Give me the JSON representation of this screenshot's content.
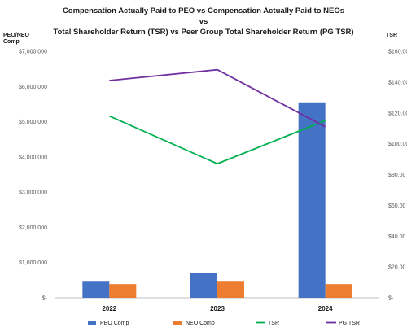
{
  "chart_data": {
    "type": "bar",
    "title_lines": [
      "Compensation Actually Paid to PEO vs Compensation Actually Paid to NEOs",
      "vs",
      "Total Shareholder Return (TSR) vs Peer Group Total Shareholder Return (PG TSR)"
    ],
    "y_left_label": "PEO/NEO Comp",
    "y_right_label": "TSR",
    "categories": [
      "2022",
      "2023",
      "2024"
    ],
    "y_left": {
      "min": 0,
      "max": 7000000,
      "ticks": [
        0,
        1000000,
        2000000,
        3000000,
        4000000,
        5000000,
        6000000,
        7000000
      ],
      "tick_labels": [
        "$-",
        "$1,000,000",
        "$2,000,000",
        "$3,000,000",
        "$4,000,000",
        "$5,000,000",
        "$6,000,000",
        "$7,000,000"
      ]
    },
    "y_right": {
      "min": 0,
      "max": 160,
      "ticks": [
        0,
        20,
        40,
        60,
        80,
        100,
        120,
        140,
        160
      ],
      "tick_labels": [
        "$-",
        "$20.00",
        "$40.00",
        "$60.00",
        "$80.00",
        "$100.00",
        "$120.00",
        "$140.00",
        "$160.00"
      ]
    },
    "series": [
      {
        "name": "PEO Comp",
        "kind": "bar",
        "axis": "left",
        "color": "#4472C4",
        "values": [
          480000,
          700000,
          5550000
        ]
      },
      {
        "name": "NEO Comp",
        "kind": "bar",
        "axis": "left",
        "color": "#ED7D31",
        "values": [
          390000,
          480000,
          390000
        ]
      },
      {
        "name": "TSR",
        "kind": "line",
        "axis": "right",
        "color": "#00B050",
        "values": [
          118,
          87,
          115
        ]
      },
      {
        "name": "PG TSR",
        "kind": "line",
        "axis": "right",
        "color": "#7030A0",
        "values": [
          141,
          148,
          111
        ]
      }
    ],
    "grid": false,
    "legend_position": "bottom"
  }
}
